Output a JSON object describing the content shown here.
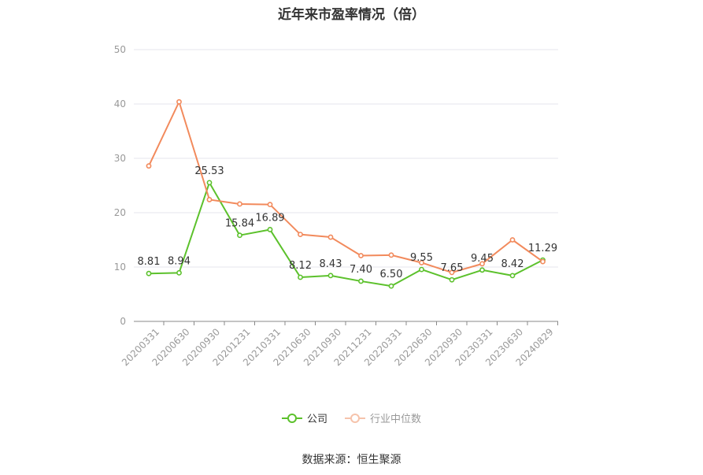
{
  "chart_data": {
    "type": "line",
    "title": "近年来市盈率情况（倍）",
    "categories": [
      "20200331",
      "20200630",
      "20200930",
      "20201231",
      "20210331",
      "20210630",
      "20210930",
      "20211231",
      "20220331",
      "20220630",
      "20220930",
      "20230331",
      "20230630",
      "20240829"
    ],
    "series": [
      {
        "name": "公司",
        "color": "#5cc12c",
        "show_labels": true,
        "values": [
          8.81,
          8.94,
          25.53,
          15.84,
          16.89,
          8.12,
          8.43,
          7.4,
          6.5,
          9.55,
          7.65,
          9.45,
          8.42,
          11.29
        ]
      },
      {
        "name": "行业中位数",
        "color": "#f28a5c",
        "show_labels": false,
        "values": [
          28.6,
          40.4,
          22.4,
          21.6,
          21.5,
          16.0,
          15.5,
          12.1,
          12.2,
          10.8,
          9.0,
          10.6,
          15.0,
          11.0
        ]
      }
    ],
    "ylim": [
      0,
      50
    ],
    "yticks": [
      0,
      10,
      20,
      30,
      40,
      50
    ],
    "xlabel": "",
    "ylabel": "",
    "grid": true,
    "legend_position": "bottom"
  },
  "legend": {
    "items": [
      {
        "label": "公司",
        "color": "#5cc12c",
        "dimmed": false
      },
      {
        "label": "行业中位数",
        "color": "#f28a5c",
        "dimmed": true
      }
    ]
  },
  "footer": {
    "source": "数据来源：恒生聚源"
  }
}
